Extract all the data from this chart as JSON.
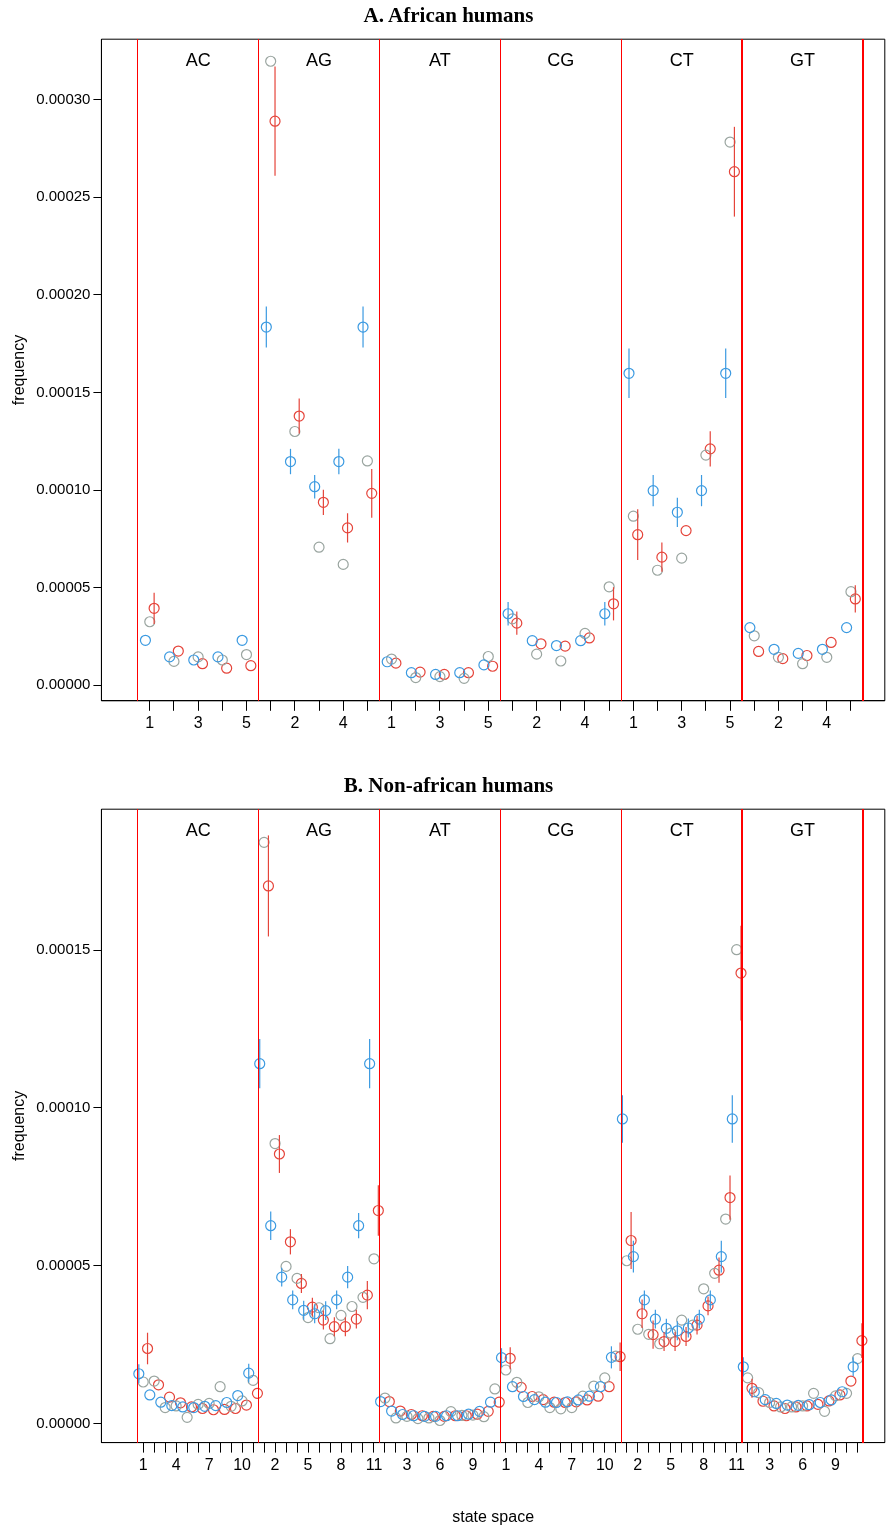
{
  "chart_data": [
    {
      "type": "scatter",
      "title": "A. African humans",
      "ylabel": "frequency",
      "marker": "circle",
      "grid": false,
      "categories": [
        "1",
        null,
        "3",
        null,
        "5",
        null,
        "2",
        null,
        "4",
        null,
        "1",
        null,
        "3",
        null,
        "5",
        null,
        "2",
        null,
        "4",
        null,
        "1",
        null,
        "3",
        null,
        "5",
        null,
        "2",
        null,
        "4",
        null
      ],
      "ylim": [
        -8e-06,
        0.000331
      ],
      "yticks": [
        {
          "value": 0,
          "label": "0.00000"
        },
        {
          "value": 5e-05,
          "label": "0.00005"
        },
        {
          "value": 0.0001,
          "label": "0.00010"
        },
        {
          "value": 0.00015,
          "label": "0.00015"
        },
        {
          "value": 0.0002,
          "label": "0.00020"
        },
        {
          "value": 0.00025,
          "label": "0.00025"
        },
        {
          "value": 0.0003,
          "label": "0.00030"
        }
      ],
      "annotations": [
        "AC",
        "AG",
        "AT",
        "CG",
        "CT",
        "GT"
      ],
      "series": [
        {
          "color": "#3b9ae1",
          "values": [
            2.3e-05,
            1.45e-05,
            1.29e-05,
            1.45e-05,
            2.3e-05,
            0.0001835,
            0.0001146,
            0.0001017,
            0.0001146,
            0.0001835,
            1.2e-05,
            6.4e-06,
            5.5e-06,
            6.4e-06,
            1.04e-05,
            3.66e-05,
            2.28e-05,
            2.03e-05,
            2.28e-05,
            3.66e-05,
            0.0001598,
            9.97e-05,
            8.86e-05,
            9.97e-05,
            0.0001598,
            2.95e-05,
            1.84e-05,
            1.63e-05,
            1.84e-05,
            2.95e-05
          ],
          "errors": [
            null,
            null,
            null,
            null,
            null,
            1.05e-05,
            6.5e-06,
            6e-06,
            6.5e-06,
            1.05e-05,
            null,
            null,
            null,
            null,
            null,
            6e-06,
            null,
            null,
            null,
            6e-06,
            1.27e-05,
            8e-06,
            7.5e-06,
            8e-06,
            1.27e-05,
            null,
            null,
            null,
            null,
            null
          ]
        },
        {
          "color": "#9aa5a0",
          "values": [
            3.25e-05,
            1.22e-05,
            1.45e-05,
            1.29e-05,
            1.57e-05,
            0.0003197,
            0.00013,
            7.07e-05,
            6.19e-05,
            0.0001149,
            1.34e-05,
            3.9e-06,
            4.4e-06,
            3.5e-06,
            1.47e-05,
            3.4e-05,
            1.59e-05,
            1.24e-05,
            2.65e-05,
            5.04e-05,
            8.66e-05,
            5.89e-05,
            6.51e-05,
            0.0001179,
            0.0002783,
            2.53e-05,
            1.43e-05,
            1.1e-05,
            1.43e-05,
            4.79e-05
          ]
        },
        {
          "color": "#e5443a",
          "values": [
            3.94e-05,
            1.75e-05,
            1.1e-05,
            8.7e-06,
            1e-05,
            0.000289,
            0.0001379,
            9.37e-05,
            8.06e-05,
            9.83e-05,
            1.13e-05,
            6.7e-06,
            5.5e-06,
            6.4e-06,
            9.7e-06,
            3.18e-05,
            2.12e-05,
            2e-05,
            2.42e-05,
            4.17e-05,
            7.71e-05,
            6.56e-05,
            7.92e-05,
            0.0001211,
            0.0002631,
            1.73e-05,
            1.36e-05,
            1.52e-05,
            2.19e-05,
            4.42e-05
          ],
          "errors": [
            8e-06,
            null,
            null,
            null,
            null,
            2.8e-05,
            9e-06,
            6.5e-06,
            7.5e-06,
            1.25e-05,
            null,
            null,
            null,
            null,
            null,
            6e-06,
            null,
            null,
            null,
            8.5e-06,
            1.3e-05,
            7.5e-06,
            null,
            9e-06,
            2.3e-05,
            null,
            null,
            null,
            null,
            7e-06
          ]
        }
      ]
    },
    {
      "type": "scatter",
      "title": "B. Non-african humans",
      "xlabel": "state space",
      "ylabel": "frequency",
      "marker": "circle",
      "grid": false,
      "categories": [
        "1",
        null,
        null,
        "4",
        null,
        null,
        "7",
        null,
        null,
        "10",
        null,
        null,
        "2",
        null,
        null,
        "5",
        null,
        null,
        "8",
        null,
        null,
        "11",
        null,
        null,
        "3",
        null,
        null,
        "6",
        null,
        null,
        "9",
        null,
        null,
        "1",
        null,
        null,
        "4",
        null,
        null,
        "7",
        null,
        null,
        "10",
        null,
        null,
        "2",
        null,
        null,
        "5",
        null,
        null,
        "8",
        null,
        null,
        "11",
        null,
        null,
        "3",
        null,
        null,
        "6",
        null,
        null,
        "9",
        null,
        null
      ],
      "ylim": [
        -6e-06,
        0.0001946
      ],
      "yticks": [
        {
          "value": 0,
          "label": "0.00000"
        },
        {
          "value": 5e-05,
          "label": "0.00005"
        },
        {
          "value": 0.0001,
          "label": "0.00010"
        },
        {
          "value": 0.00015,
          "label": "0.00015"
        }
      ],
      "annotations": [
        "AC",
        "AG",
        "AT",
        "CG",
        "CT",
        "GT"
      ],
      "series": [
        {
          "color": "#3b9ae1",
          "values": [
            1.58e-05,
            9.1e-06,
            6.8e-06,
            5.7e-06,
            5.3e-06,
            5.1e-06,
            5.5e-06,
            5.7e-06,
            6.7e-06,
            8.9e-06,
            1.6e-05,
            0.000114,
            6.27e-05,
            4.64e-05,
            3.92e-05,
            3.59e-05,
            3.48e-05,
            3.58e-05,
            3.92e-05,
            4.64e-05,
            6.27e-05,
            0.000114,
            7e-06,
            4e-06,
            2.9e-06,
            2.5e-06,
            2.3e-06,
            2.3e-06,
            2.5e-06,
            2.5e-06,
            3e-06,
            3.9e-06,
            6.8e-06,
            2.09e-05,
            1.17e-05,
            8.6e-06,
            7.6e-06,
            6.8e-06,
            6.7e-06,
            6.9e-06,
            7.5e-06,
            8.7e-06,
            1.17e-05,
            2.1e-05,
            9.65e-05,
            5.29e-05,
            3.92e-05,
            3.31e-05,
            3.02e-05,
            2.94e-05,
            3.03e-05,
            3.31e-05,
            3.92e-05,
            5.29e-05,
            9.65e-05,
            1.8e-05,
            1.01e-05,
            7.6e-06,
            6.4e-06,
            5.9e-06,
            5.8e-06,
            6e-06,
            6.7e-06,
            7.5e-06,
            1.01e-05,
            1.8e-05
          ],
          "errors": [
            3e-06,
            null,
            null,
            null,
            null,
            null,
            null,
            null,
            null,
            null,
            3e-06,
            7.8e-06,
            4.5e-06,
            3e-06,
            3e-06,
            3e-06,
            3e-06,
            3e-06,
            3e-06,
            3.5e-06,
            4e-06,
            7.8e-06,
            null,
            null,
            null,
            null,
            null,
            null,
            null,
            null,
            null,
            null,
            null,
            3e-06,
            null,
            null,
            null,
            null,
            null,
            null,
            null,
            null,
            null,
            3.5e-06,
            7.5e-06,
            5e-06,
            3e-06,
            3e-06,
            3e-06,
            3e-06,
            3e-06,
            3e-06,
            3e-06,
            5e-06,
            7.5e-06,
            3e-06,
            null,
            null,
            null,
            null,
            null,
            null,
            null,
            null,
            null,
            3e-06
          ]
        },
        {
          "color": "#9aa5a0",
          "values": [
            1.32e-05,
            1.35e-05,
            5.1e-06,
            5.6e-06,
            2e-06,
            6.1e-06,
            6.4e-06,
            1.17e-05,
            5.5e-06,
            7.2e-06,
            1.37e-05,
            0.0001841,
            8.87e-05,
            4.98e-05,
            4.6e-05,
            3.36e-05,
            3.67e-05,
            2.69e-05,
            3.43e-05,
            3.71e-05,
            4e-05,
            5.22e-05,
            8.1e-06,
            1.8e-06,
            2.3e-06,
            1.6e-06,
            1.8e-06,
            1e-06,
            3.8e-06,
            2.6e-06,
            2.7e-06,
            2.2e-06,
            1.1e-05,
            1.7e-05,
            1.31e-05,
            6.7e-06,
            8.5e-06,
            5.1e-06,
            4.7e-06,
            5.1e-06,
            8.7e-06,
            1.19e-05,
            1.45e-05,
            2.14e-05,
            5.16e-05,
            2.99e-05,
            2.83e-05,
            2.53e-05,
            2.87e-05,
            3.28e-05,
            3.12e-05,
            4.27e-05,
            4.76e-05,
            6.48e-05,
            0.0001501,
            1.45e-05,
            9.8e-06,
            6.7e-06,
            5.3e-06,
            5.3e-06,
            5.6e-06,
            9.6e-06,
            3.9e-06,
            8.8e-06,
            9.6e-06,
            2.06e-05
          ]
        },
        {
          "color": "#e5443a",
          "values": [
            2.38e-05,
            1.23e-05,
            8.4e-06,
            6.6e-06,
            5.3e-06,
            4.8e-06,
            4.4e-06,
            4.5e-06,
            4.8e-06,
            5.9e-06,
            9.6e-06,
            0.0001703,
            8.54e-05,
            5.76e-05,
            4.44e-05,
            3.69e-05,
            3.28e-05,
            3.07e-05,
            3.07e-05,
            3.31e-05,
            4.07e-05,
            6.75e-05,
            7e-06,
            4e-06,
            2.9e-06,
            2.5e-06,
            2.3e-06,
            2.3e-06,
            2.5e-06,
            2.5e-06,
            3e-06,
            3.9e-06,
            6.8e-06,
            2.07e-05,
            1.15e-05,
            8.6e-06,
            7.6e-06,
            6.8e-06,
            6.7e-06,
            6.9e-06,
            7.5e-06,
            8.7e-06,
            1.17e-05,
            2.12e-05,
            5.8e-05,
            3.48e-05,
            2.82e-05,
            2.6e-05,
            2.6e-05,
            2.76e-05,
            3.12e-05,
            3.73e-05,
            4.86e-05,
            7.16e-05,
            0.0001427,
            1.12e-05,
            7.1e-06,
            5.6e-06,
            4.8e-06,
            5.3e-06,
            5.6e-06,
            6.1e-06,
            7.2e-06,
            9.1e-06,
            1.35e-05,
            2.63e-05
          ],
          "errors": [
            5e-06,
            null,
            null,
            null,
            null,
            null,
            null,
            null,
            null,
            null,
            null,
            1.6e-05,
            6e-06,
            4e-06,
            3e-06,
            3e-06,
            3e-06,
            3e-06,
            3e-06,
            3e-06,
            4.5e-06,
            8e-06,
            null,
            null,
            null,
            null,
            null,
            null,
            null,
            null,
            null,
            null,
            null,
            3.5e-06,
            null,
            null,
            null,
            null,
            null,
            null,
            null,
            null,
            null,
            4.5e-06,
            9e-06,
            4.5e-06,
            4.5e-06,
            3e-06,
            3e-06,
            3e-06,
            3e-06,
            3e-06,
            4e-06,
            7e-06,
            1.5e-05,
            3e-06,
            null,
            null,
            null,
            null,
            null,
            null,
            null,
            null,
            null,
            5.5e-06
          ]
        }
      ]
    }
  ]
}
